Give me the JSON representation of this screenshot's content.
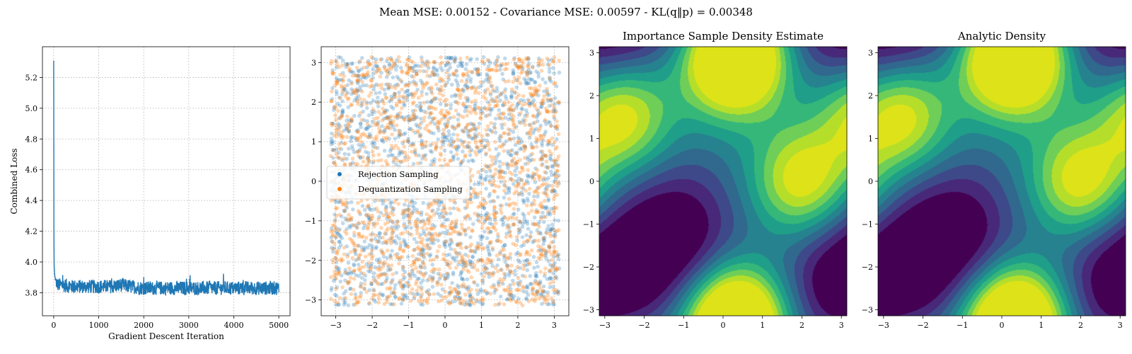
{
  "suptitle": "Mean MSE: 0.00152 - Covariance MSE: 0.00597 - KL(q‖p) = 0.00348",
  "colors": {
    "blue": "#1f77b4",
    "orange": "#ff7f0e",
    "viridis": [
      "#440154",
      "#482878",
      "#3e4989",
      "#31688e",
      "#26828e",
      "#1f9e89",
      "#35b779",
      "#6ece58",
      "#b5de2b",
      "#dde318"
    ]
  },
  "chart_data": [
    {
      "type": "line",
      "xlabel": "Gradient Descent Iteration",
      "ylabel": "Combined Loss",
      "xlim": [
        -250,
        5250
      ],
      "ylim": [
        3.65,
        5.4
      ],
      "xticks": [
        0,
        1000,
        2000,
        3000,
        4000,
        5000
      ],
      "xtick_labels": [
        "0",
        "1000",
        "2000",
        "3000",
        "4000",
        "5000"
      ],
      "yticks": [
        3.8,
        4.0,
        4.2,
        4.4,
        4.6,
        4.8,
        5.0,
        5.2
      ],
      "ytick_labels": [
        "3.8",
        "4.0",
        "4.2",
        "4.4",
        "4.6",
        "4.8",
        "5.0",
        "5.2"
      ],
      "grid": true,
      "series": [
        {
          "x": [
            0,
            5,
            10,
            20,
            40,
            70,
            100,
            200,
            400,
            700,
            1000,
            1300,
            1500,
            1700,
            2000,
            2500,
            3000,
            3500,
            4000,
            4500,
            5000
          ],
          "y": [
            5.31,
            4.2,
            3.98,
            3.92,
            3.88,
            3.86,
            3.85,
            3.85,
            3.84,
            3.84,
            3.84,
            3.84,
            3.85,
            3.84,
            3.83,
            3.83,
            3.83,
            3.83,
            3.83,
            3.83,
            3.83
          ]
        }
      ]
    },
    {
      "type": "scatter",
      "xlim": [
        -3.4,
        3.4
      ],
      "ylim": [
        -3.4,
        3.4
      ],
      "xticks": [
        -3,
        -2,
        -1,
        0,
        1,
        2,
        3
      ],
      "xtick_labels": [
        "−3",
        "−2",
        "−1",
        "0",
        "1",
        "2",
        "3"
      ],
      "yticks": [
        -3,
        -2,
        -1,
        0,
        1,
        2,
        3
      ],
      "ytick_labels": [
        "−3",
        "−2",
        "−1",
        "0",
        "1",
        "2",
        "3"
      ],
      "grid": true,
      "legend_position": "center-left",
      "series": [
        {
          "name": "Rejection Sampling",
          "x_range": [
            -3.14,
            3.14
          ],
          "y_range": [
            -3.14,
            3.14
          ]
        },
        {
          "name": "Dequantization Sampling",
          "x_range": [
            -3.14,
            3.14
          ],
          "y_range": [
            -3.14,
            3.14
          ]
        }
      ]
    },
    {
      "type": "heatmap",
      "title": "Importance Sample Density Estimate",
      "xlim": [
        -3.14,
        3.14
      ],
      "ylim": [
        -3.14,
        3.14
      ],
      "xticks": [
        -3,
        -2,
        -1,
        0,
        1,
        2,
        3
      ],
      "xtick_labels": [
        "−3",
        "−2",
        "−1",
        "0",
        "1",
        "2",
        "3"
      ],
      "yticks": [
        -3,
        -2,
        -1,
        0,
        1,
        2,
        3
      ],
      "ytick_labels": [
        "−3",
        "−2",
        "−1",
        "0",
        "1",
        "2",
        "3"
      ],
      "peaks": [
        [
          -2.6,
          1.5
        ],
        [
          0.3,
          2.7
        ],
        [
          2.0,
          0.0
        ],
        [
          0.3,
          -3.1
        ]
      ],
      "troughs": [
        [
          -1.3,
          -1.3
        ],
        [
          3.1,
          -2.4
        ]
      ]
    },
    {
      "type": "heatmap",
      "title": "Analytic Density",
      "xlim": [
        -3.14,
        3.14
      ],
      "ylim": [
        -3.14,
        3.14
      ],
      "xticks": [
        -3,
        -2,
        -1,
        0,
        1,
        2,
        3
      ],
      "xtick_labels": [
        "−3",
        "−2",
        "−1",
        "0",
        "1",
        "2",
        "3"
      ],
      "yticks": [
        -3,
        -2,
        -1,
        0,
        1,
        2,
        3
      ],
      "ytick_labels": [
        "−3",
        "−2",
        "−1",
        "0",
        "1",
        "2",
        "3"
      ],
      "peaks": [
        [
          -2.6,
          1.5
        ],
        [
          0.3,
          2.7
        ],
        [
          2.0,
          0.0
        ],
        [
          0.3,
          -3.1
        ]
      ],
      "troughs": [
        [
          -1.3,
          -1.3
        ],
        [
          3.1,
          -2.4
        ]
      ]
    }
  ]
}
